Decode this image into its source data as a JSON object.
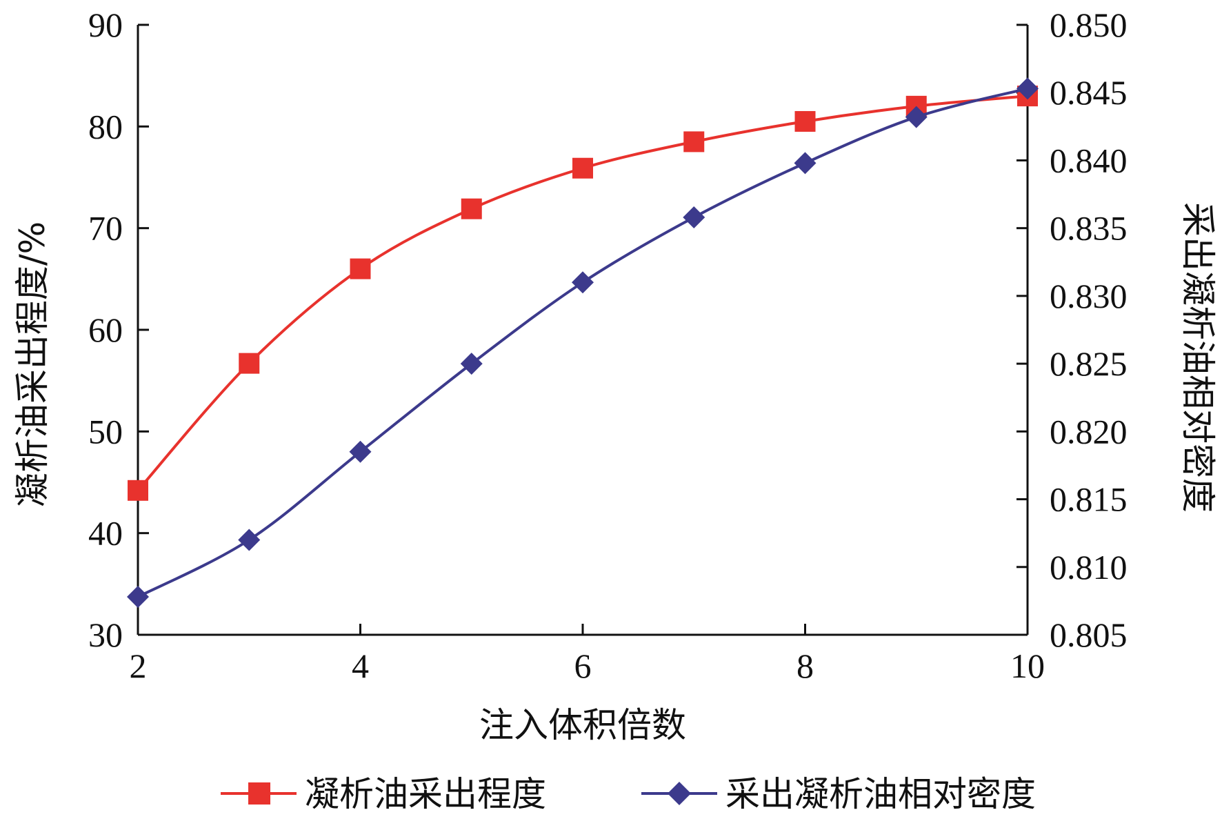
{
  "chart_data": {
    "type": "line",
    "xlabel": "注入体积倍数",
    "ylabel_left": "凝析油采出程度/%",
    "ylabel_right": "采出凝析油相对密度",
    "xlim": [
      2,
      10
    ],
    "ylim_left": [
      30,
      90
    ],
    "ylim_right": [
      0.805,
      0.85
    ],
    "x_ticks": [
      "2",
      "4",
      "6",
      "8",
      "10"
    ],
    "y_left_ticks": [
      "30",
      "40",
      "50",
      "60",
      "70",
      "80",
      "90"
    ],
    "y_right_ticks": [
      "0.805",
      "0.810",
      "0.815",
      "0.820",
      "0.825",
      "0.830",
      "0.835",
      "0.840",
      "0.845",
      "0.850"
    ],
    "legend_position": "bottom",
    "grid": false,
    "series": [
      {
        "name": "凝析油采出程度",
        "axis": "left",
        "color": "#e8322d",
        "marker": "square",
        "x": [
          2,
          3,
          4,
          5,
          6,
          7,
          8,
          9,
          10
        ],
        "y": [
          44.2,
          56.7,
          66.0,
          71.9,
          75.9,
          78.5,
          80.5,
          82.0,
          83.0
        ]
      },
      {
        "name": "采出凝析油相对密度",
        "axis": "right",
        "color": "#3c3a8c",
        "marker": "diamond",
        "x": [
          2,
          3,
          4,
          5,
          6,
          7,
          8,
          9,
          10
        ],
        "y": [
          0.8078,
          0.812,
          0.8185,
          0.825,
          0.831,
          0.8358,
          0.8398,
          0.8432,
          0.8453
        ]
      }
    ]
  }
}
